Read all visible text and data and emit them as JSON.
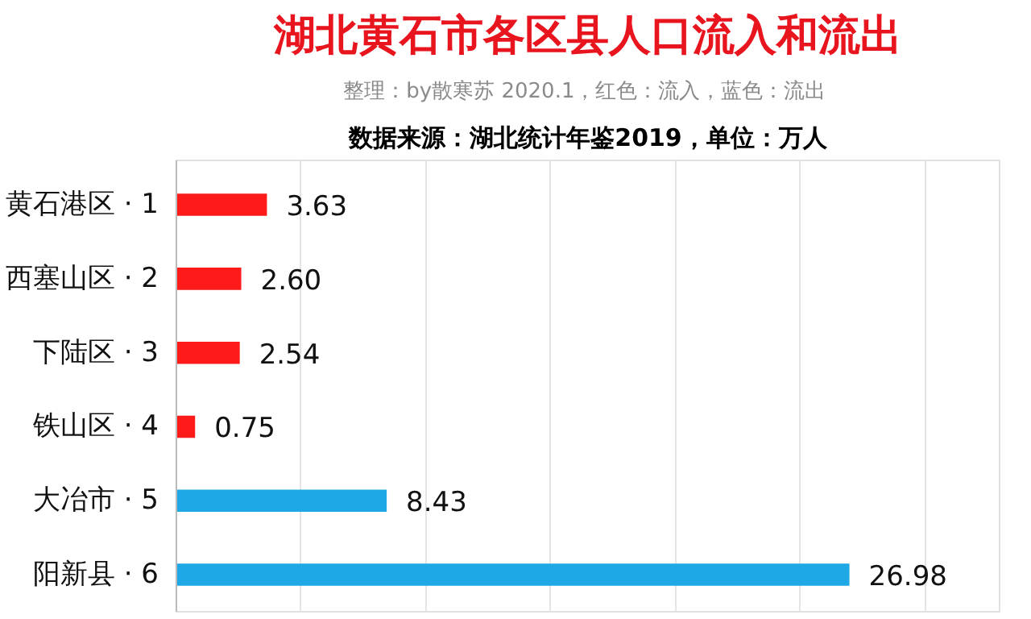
{
  "chart_data": {
    "type": "bar",
    "orientation": "horizontal",
    "title": "湖北黄石市各区县人口流入和流出",
    "subtitle": "整理：by散寒苏  2020.1，红色：流入，蓝色：流出",
    "annotations": [
      "数据来源：湖北统计年鉴2019，单位：万人"
    ],
    "categories": [
      "黄石港区 · 1",
      "西塞山区 · 2",
      "下陆区 · 3",
      "铁山区 · 4",
      "大冶市 · 5",
      "阳新县 · 6"
    ],
    "values": [
      3.63,
      2.6,
      2.54,
      0.75,
      8.43,
      26.98
    ],
    "value_labels": [
      "3.63",
      "2.60",
      "2.54",
      "0.75",
      "8.43",
      "26.98"
    ],
    "colors": [
      "#ff1a1a",
      "#ff1a1a",
      "#ff1a1a",
      "#ff1a1a",
      "#1ea8e6",
      "#1ea8e6"
    ],
    "xlim": [
      0,
      33
    ],
    "xticks": [
      {
        "value": 0,
        "label": null
      },
      {
        "value": 5,
        "label": null
      },
      {
        "value": 10,
        "label": null
      },
      {
        "value": 15,
        "label": null
      },
      {
        "value": 20,
        "label": null
      },
      {
        "value": 25,
        "label": null
      },
      {
        "value": 30,
        "label": null
      }
    ],
    "grid": "x",
    "tick_labels": "y"
  }
}
